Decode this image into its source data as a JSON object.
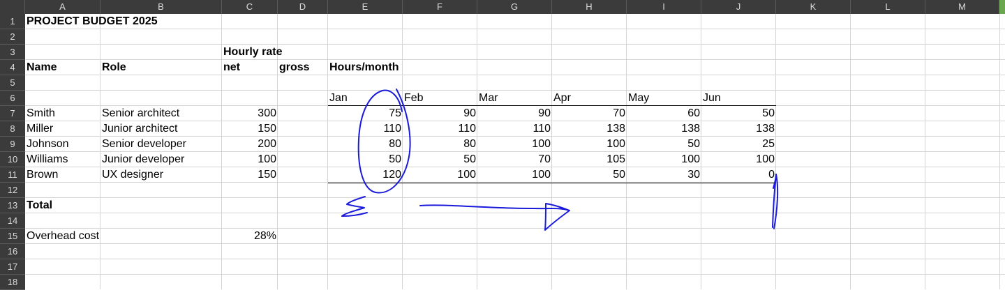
{
  "columns": [
    "A",
    "B",
    "C",
    "D",
    "E",
    "F",
    "G",
    "H",
    "I",
    "J",
    "K",
    "L",
    "M"
  ],
  "rows": [
    "1",
    "2",
    "3",
    "4",
    "5",
    "6",
    "7",
    "8",
    "9",
    "10",
    "11",
    "12",
    "13",
    "14",
    "15",
    "16",
    "17",
    "18"
  ],
  "sheet": {
    "title": "PROJECT BUDGET 2025",
    "hourly_rate_label": "Hourly rate",
    "name_label": "Name",
    "role_label": "Role",
    "net_label": "net",
    "gross_label": "gross",
    "hours_label": "Hours/month",
    "months": [
      "Jan",
      "Feb",
      "Mar",
      "Apr",
      "May",
      "Jun"
    ],
    "people": [
      {
        "name": "Smith",
        "role": "Senior architect",
        "rate": "300",
        "hours": [
          "75",
          "90",
          "90",
          "70",
          "60",
          "50"
        ]
      },
      {
        "name": "Miller",
        "role": "Junior architect",
        "rate": "150",
        "hours": [
          "110",
          "110",
          "110",
          "138",
          "138",
          "138"
        ]
      },
      {
        "name": "Johnson",
        "role": "Senior developer",
        "rate": "200",
        "hours": [
          "80",
          "80",
          "100",
          "100",
          "50",
          "25"
        ]
      },
      {
        "name": "Williams",
        "role": "Junior developer",
        "rate": "100",
        "hours": [
          "50",
          "50",
          "70",
          "105",
          "100",
          "100"
        ]
      },
      {
        "name": "Brown",
        "role": "UX designer",
        "rate": "150",
        "hours": [
          "120",
          "100",
          "100",
          "50",
          "30",
          "0"
        ]
      }
    ],
    "total_label": "Total",
    "overhead_label": "Overhead cost",
    "overhead_value": "28%"
  },
  "colors": {
    "header_bg": "#3b3b3b",
    "grid": "#d4d4d4",
    "ink": "#1a1adb"
  }
}
